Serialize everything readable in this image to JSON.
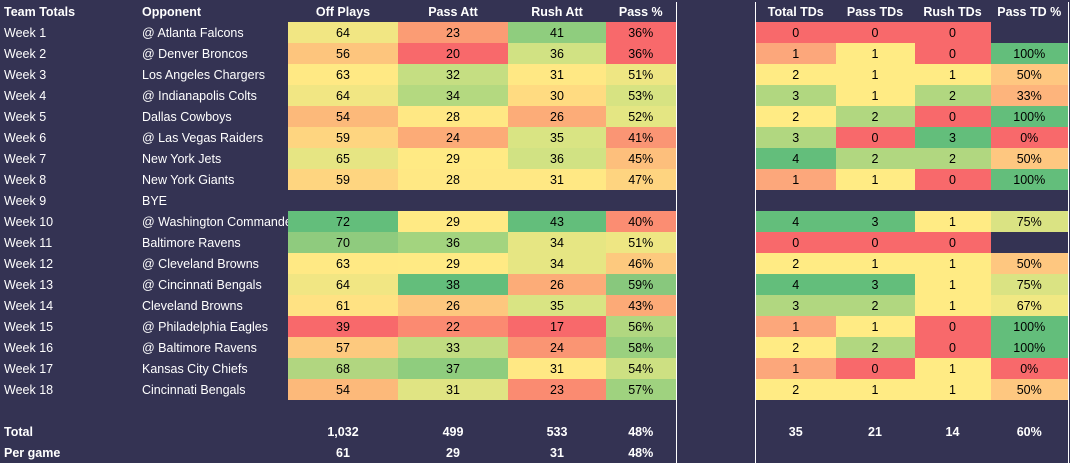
{
  "headers_left": [
    "Team Totals",
    "Opponent",
    "Off Plays",
    "Pass Att",
    "Rush Att",
    "Pass %"
  ],
  "headers_right": [
    "Total TDs",
    "Pass TDs",
    "Rush TDs",
    "Pass TD %"
  ],
  "weeks": [
    {
      "week": "Week 1",
      "opp": "@ Atlanta Falcons",
      "plays": "64",
      "pass": "23",
      "rush": "41",
      "pct": "36%",
      "ttd": "0",
      "ptd": "0",
      "rtd": "0",
      "ptdp": "",
      "c": {
        "plays": "#f1e683",
        "pass": "#fb9c74",
        "rush": "#8fcd7e",
        "pct": "#f8696b",
        "ttd": "#f8696b",
        "ptd": "#f8696b",
        "rtd": "#f8696b",
        "ptdp": ""
      }
    },
    {
      "week": "Week 2",
      "opp": "@ Denver Broncos",
      "plays": "56",
      "pass": "20",
      "rush": "36",
      "pct": "36%",
      "ttd": "1",
      "ptd": "1",
      "rtd": "0",
      "ptdp": "100%",
      "c": {
        "plays": "#fdc57d",
        "pass": "#f8696b",
        "rush": "#d1e283",
        "pct": "#f8696b",
        "ttd": "#fca77b",
        "ptd": "#ffeb84",
        "rtd": "#f8696b",
        "ptdp": "#63be7b"
      }
    },
    {
      "week": "Week 3",
      "opp": "Los Angeles Chargers",
      "plays": "63",
      "pass": "32",
      "rush": "31",
      "pct": "51%",
      "ttd": "2",
      "ptd": "1",
      "rtd": "1",
      "ptdp": "50%",
      "c": {
        "plays": "#ffe984",
        "pass": "#c5de82",
        "rush": "#ffe884",
        "pct": "#eee683",
        "ttd": "#ffeb84",
        "ptd": "#ffeb84",
        "rtd": "#ffeb84",
        "ptdp": "#fec780"
      }
    },
    {
      "week": "Week 4",
      "opp": "@ Indianapolis Colts",
      "plays": "64",
      "pass": "34",
      "rush": "30",
      "pct": "53%",
      "ttd": "3",
      "ptd": "1",
      "rtd": "2",
      "ptdp": "33%",
      "c": {
        "plays": "#f1e683",
        "pass": "#b4d980",
        "rush": "#ffdb81",
        "pct": "#d7e382",
        "ttd": "#b1d780",
        "ptd": "#ffeb84",
        "rtd": "#b1d780",
        "ptdp": "#fdb47c"
      }
    },
    {
      "week": "Week 5",
      "opp": "Dallas Cowboys",
      "plays": "54",
      "pass": "28",
      "rush": "26",
      "pct": "52%",
      "ttd": "2",
      "ptd": "2",
      "rtd": "0",
      "ptdp": "100%",
      "c": {
        "plays": "#fcb97a",
        "pass": "#ffe884",
        "rush": "#fcac78",
        "pct": "#e4e683",
        "ttd": "#ffeb84",
        "ptd": "#b1d780",
        "rtd": "#f8696b",
        "ptdp": "#63be7b"
      }
    },
    {
      "week": "Week 6",
      "opp": "@ Las Vegas Raiders",
      "plays": "59",
      "pass": "24",
      "rush": "35",
      "pct": "41%",
      "ttd": "3",
      "ptd": "0",
      "rtd": "3",
      "ptdp": "0%",
      "c": {
        "plays": "#fed580",
        "pass": "#fcab77",
        "rush": "#d9e483",
        "pct": "#fa9574",
        "ttd": "#b1d780",
        "ptd": "#f8696b",
        "rtd": "#63be7b",
        "ptdp": "#f8696b"
      }
    },
    {
      "week": "Week 7",
      "opp": "New York Jets",
      "plays": "65",
      "pass": "29",
      "rush": "36",
      "pct": "45%",
      "ttd": "4",
      "ptd": "2",
      "rtd": "2",
      "ptdp": "50%",
      "c": {
        "plays": "#e6e583",
        "pass": "#ffea84",
        "rush": "#d1e283",
        "pct": "#fdbf7c",
        "ttd": "#63be7b",
        "ptd": "#b1d780",
        "rtd": "#b1d780",
        "ptdp": "#fec780"
      }
    },
    {
      "week": "Week 8",
      "opp": "New York Giants",
      "plays": "59",
      "pass": "28",
      "rush": "31",
      "pct": "47%",
      "ttd": "1",
      "ptd": "1",
      "rtd": "0",
      "ptdp": "100%",
      "c": {
        "plays": "#fed580",
        "pass": "#ffe884",
        "rush": "#ffe884",
        "pct": "#fed480",
        "ttd": "#fca77b",
        "ptd": "#ffeb84",
        "rtd": "#f8696b",
        "ptdp": "#63be7b"
      }
    },
    {
      "week": "Week 9",
      "opp": "BYE",
      "plays": "",
      "pass": "",
      "rush": "",
      "pct": "",
      "ttd": "",
      "ptd": "",
      "rtd": "",
      "ptdp": "",
      "c": {
        "plays": "",
        "pass": "",
        "rush": "",
        "pct": "",
        "ttd": "",
        "ptd": "",
        "rtd": "",
        "ptdp": ""
      }
    },
    {
      "week": "Week 10",
      "opp": "@ Washington Commanders",
      "plays": "72",
      "pass": "29",
      "rush": "43",
      "pct": "40%",
      "ttd": "4",
      "ptd": "3",
      "rtd": "1",
      "ptdp": "75%",
      "c": {
        "plays": "#63be7b",
        "pass": "#ffea84",
        "rush": "#63be7b",
        "pct": "#fb8d72",
        "ttd": "#63be7b",
        "ptd": "#63be7b",
        "rtd": "#ffeb84",
        "ptdp": "#dae383"
      }
    },
    {
      "week": "Week 11",
      "opp": "Baltimore Ravens",
      "plays": "70",
      "pass": "36",
      "rush": "34",
      "pct": "51%",
      "ttd": "0",
      "ptd": "0",
      "rtd": "0",
      "ptdp": "",
      "c": {
        "plays": "#8fcb7e",
        "pass": "#a3d47f",
        "rush": "#e6e683",
        "pct": "#eee683",
        "ttd": "#f8696b",
        "ptd": "#f8696b",
        "rtd": "#f8696b",
        "ptdp": ""
      }
    },
    {
      "week": "Week 12",
      "opp": "@ Cleveland Browns",
      "plays": "63",
      "pass": "29",
      "rush": "34",
      "pct": "46%",
      "ttd": "2",
      "ptd": "1",
      "rtd": "1",
      "ptdp": "50%",
      "c": {
        "plays": "#ffe984",
        "pass": "#ffea84",
        "rush": "#e6e683",
        "pct": "#fdc97e",
        "ttd": "#ffeb84",
        "ptd": "#ffeb84",
        "rtd": "#ffeb84",
        "ptdp": "#fec780"
      }
    },
    {
      "week": "Week 13",
      "opp": "@ Cincinnati Bengals",
      "plays": "64",
      "pass": "38",
      "rush": "26",
      "pct": "59%",
      "ttd": "4",
      "ptd": "3",
      "rtd": "1",
      "ptdp": "75%",
      "c": {
        "plays": "#f1e683",
        "pass": "#63be7b",
        "rush": "#fcac78",
        "pct": "#88c87d",
        "ttd": "#63be7b",
        "ptd": "#63be7b",
        "rtd": "#ffeb84",
        "ptdp": "#dae383"
      }
    },
    {
      "week": "Week 14",
      "opp": "Cleveland Browns",
      "plays": "61",
      "pass": "26",
      "rush": "35",
      "pct": "43%",
      "ttd": "3",
      "ptd": "2",
      "rtd": "1",
      "ptdp": "67%",
      "c": {
        "plays": "#ffe283",
        "pass": "#fdc77e",
        "rush": "#d9e483",
        "pct": "#fcaa77",
        "ttd": "#b1d780",
        "ptd": "#b1d780",
        "rtd": "#ffeb84",
        "ptdp": "#f0e883"
      }
    },
    {
      "week": "Week 15",
      "opp": "@ Philadelphia Eagles",
      "plays": "39",
      "pass": "22",
      "rush": "17",
      "pct": "56%",
      "ttd": "1",
      "ptd": "1",
      "rtd": "0",
      "ptdp": "100%",
      "c": {
        "plays": "#f8696b",
        "pass": "#fb8a71",
        "rush": "#f8696b",
        "pct": "#b1d780",
        "ttd": "#fca77b",
        "ptd": "#ffeb84",
        "rtd": "#f8696b",
        "ptdp": "#63be7b"
      }
    },
    {
      "week": "Week 16",
      "opp": "@ Baltimore Ravens",
      "plays": "57",
      "pass": "33",
      "rush": "24",
      "pct": "58%",
      "ttd": "2",
      "ptd": "2",
      "rtd": "0",
      "ptdp": "100%",
      "c": {
        "plays": "#fdc97e",
        "pass": "#c1dc81",
        "rush": "#fa9573",
        "pct": "#9ad07f",
        "ttd": "#ffeb84",
        "ptd": "#b1d780",
        "rtd": "#f8696b",
        "ptdp": "#63be7b"
      }
    },
    {
      "week": "Week 17",
      "opp": "Kansas City Chiefs",
      "plays": "68",
      "pass": "37",
      "rush": "31",
      "pct": "54%",
      "ttd": "1",
      "ptd": "0",
      "rtd": "1",
      "ptdp": "0%",
      "c": {
        "plays": "#b1d680",
        "pass": "#8fcd7e",
        "rush": "#ffe884",
        "pct": "#cde082",
        "ttd": "#fca77b",
        "ptd": "#f8696b",
        "rtd": "#ffeb84",
        "ptdp": "#f8696b"
      }
    },
    {
      "week": "Week 18",
      "opp": "Cincinnati Bengals",
      "plays": "54",
      "pass": "31",
      "rush": "23",
      "pct": "57%",
      "ttd": "2",
      "ptd": "1",
      "rtd": "1",
      "ptdp": "50%",
      "c": {
        "plays": "#fcb97a",
        "pass": "#e0e483",
        "rush": "#fa8b71",
        "pct": "#9fd27f",
        "ttd": "#ffeb84",
        "ptd": "#ffeb84",
        "rtd": "#ffeb84",
        "ptdp": "#fec780"
      }
    }
  ],
  "total": {
    "label": "Total",
    "plays": "1,032",
    "pass": "499",
    "rush": "533",
    "pct": "48%",
    "ttd": "35",
    "ptd": "21",
    "rtd": "14",
    "ptdp": "60%"
  },
  "per_game": {
    "label": "Per game",
    "plays": "61",
    "pass": "29",
    "rush": "31",
    "pct": "48%"
  }
}
